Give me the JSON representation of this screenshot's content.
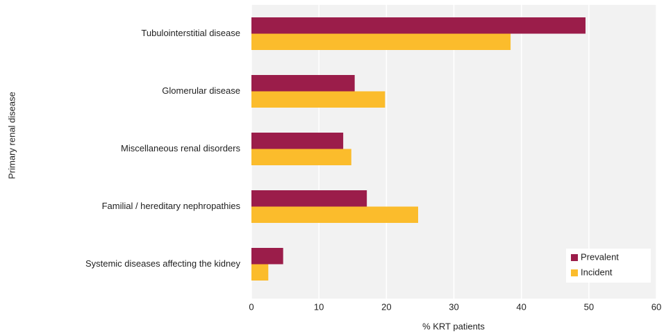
{
  "chart_data": {
    "type": "bar",
    "orientation": "horizontal",
    "categories": [
      "Tubulointerstitial disease",
      "Glomerular disease",
      "Miscellaneous renal disorders",
      "Familial / hereditary nephropathies",
      "Systemic diseases affecting the kidney"
    ],
    "series": [
      {
        "name": "Prevalent",
        "color": "#9b1d4a",
        "values": [
          49.5,
          15.3,
          13.6,
          17.1,
          4.7
        ]
      },
      {
        "name": "Incident",
        "color": "#fbbc2c",
        "values": [
          38.4,
          19.8,
          14.8,
          24.7,
          2.5
        ]
      }
    ],
    "xlabel": "% KRT patients",
    "ylabel": "Primary renal disease",
    "xlim": [
      0,
      60
    ],
    "xticks": [
      0,
      10,
      20,
      30,
      40,
      50,
      60
    ],
    "grid": true,
    "legend": "lower right"
  }
}
